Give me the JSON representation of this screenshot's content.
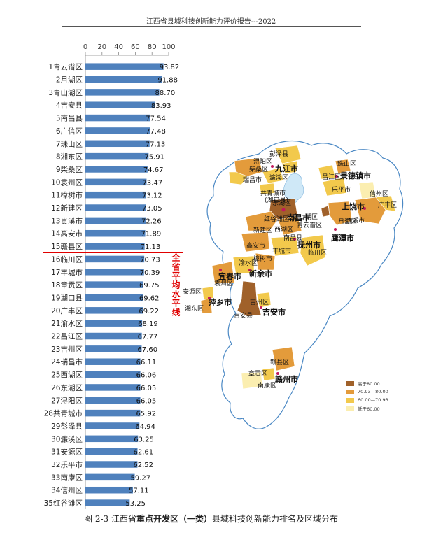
{
  "header": {
    "title": "江西省县域科技创新能力评价报告---2022"
  },
  "caption": {
    "prefix": "图 2-3 江西省",
    "bold": "重点开发区（一类）",
    "suffix": "县域科技创新能力排名及区域分布"
  },
  "average_label": "全省平均水平线",
  "colors": {
    "bar": "#4f81bd",
    "avg_line": "#e00000",
    "level1": "#a0612a",
    "level2": "#e39b3b",
    "level3": "#f2c94c",
    "level4": "#fbeeb0",
    "other": "#ffffff",
    "water": "#cfe8f7",
    "border": "#4a88c4"
  },
  "chart_data": {
    "type": "bar",
    "orientation": "horizontal",
    "xlim": [
      0,
      100
    ],
    "xticks": [
      0,
      20,
      40,
      60,
      80,
      100
    ],
    "average_after_rank": 15,
    "categories": [
      "1青云谱区",
      "2月湖区",
      "3青山湖区",
      "4吉安县",
      "5南昌县",
      "6广信区",
      "7珠山区",
      "8湘东区",
      "9柴桑区",
      "10袁州区",
      "11樟树市",
      "12新建区",
      "13贵溪市",
      "14高安市",
      "15赣县区",
      "16临川区",
      "17丰城市",
      "18章贡区",
      "19湖口县",
      "20广丰区",
      "21渝水区",
      "22昌江区",
      "23吉州区",
      "24瑞昌市",
      "25西湖区",
      "26东湖区",
      "27浔阳区",
      "28共青城市",
      "29彭泽县",
      "30濂溪区",
      "31安源区",
      "32乐平市",
      "33南康区",
      "34信州区",
      "35红谷滩区"
    ],
    "values": [
      93.82,
      91.88,
      88.7,
      83.93,
      77.54,
      77.48,
      77.13,
      75.91,
      74.67,
      73.47,
      73.12,
      73.05,
      72.26,
      71.89,
      71.13,
      70.73,
      70.39,
      69.75,
      69.62,
      69.22,
      68.19,
      67.77,
      67.6,
      66.11,
      66.06,
      66.05,
      66.05,
      65.92,
      64.94,
      63.25,
      62.61,
      62.52,
      59.27,
      57.11,
      53.25
    ],
    "value_labels": [
      "93.82",
      "91.88",
      "88.70",
      "83.93",
      "77.54",
      "77.48",
      "77.13",
      "75.91",
      "74.67",
      "73.47",
      "73.12",
      "73.05",
      "72.26",
      "71.89",
      "71.13",
      "70.73",
      "70.39",
      "69.75",
      "69.62",
      "69.22",
      "68.19",
      "67.77",
      "67.60",
      "66.11",
      "66.06",
      "66.05",
      "66.05",
      "65.92",
      "64.94",
      "63.25",
      "62.61",
      "62.52",
      "59.27",
      "57.11",
      "53.25"
    ]
  },
  "map": {
    "labels": [
      {
        "text": "彭泽县",
        "big": false
      },
      {
        "text": "浔阳区",
        "big": false
      },
      {
        "text": "柴桑区",
        "big": false
      },
      {
        "text": "九江市",
        "big": true
      },
      {
        "text": "濂溪区",
        "big": false
      },
      {
        "text": "瑞昌市",
        "big": false
      },
      {
        "text": "珠山区",
        "big": false
      },
      {
        "text": "昌江区",
        "big": false
      },
      {
        "text": "景德镇市",
        "big": true
      },
      {
        "text": "乐平市",
        "big": false
      },
      {
        "text": "共青城市",
        "big": false
      },
      {
        "text": "(湖口县)",
        "big": false
      },
      {
        "text": "信州区",
        "big": false
      },
      {
        "text": "上饶市",
        "big": true
      },
      {
        "text": "广丰区",
        "big": false
      },
      {
        "text": "东湖区",
        "big": false
      },
      {
        "text": "南昌市",
        "big": true
      },
      {
        "text": "红谷滩区",
        "big": false
      },
      {
        "text": "青山湖区",
        "big": false
      },
      {
        "text": "青云谱区",
        "big": false
      },
      {
        "text": "新建区",
        "big": false
      },
      {
        "text": "西湖区",
        "big": false
      },
      {
        "text": "南昌县",
        "big": false
      },
      {
        "text": "月湖区",
        "big": false
      },
      {
        "text": "贵溪市",
        "big": false
      },
      {
        "text": "鹰潭市",
        "big": true
      },
      {
        "text": "高安市",
        "big": false
      },
      {
        "text": "丰城市",
        "big": false
      },
      {
        "text": "抚州市",
        "big": true
      },
      {
        "text": "临川区",
        "big": false
      },
      {
        "text": "渝水区",
        "big": false
      },
      {
        "text": "樟树市",
        "big": false
      },
      {
        "text": "宜春市",
        "big": true
      },
      {
        "text": "新余市",
        "big": true
      },
      {
        "text": "袁州区",
        "big": false
      },
      {
        "text": "安源区",
        "big": false
      },
      {
        "text": "萍乡市",
        "big": true
      },
      {
        "text": "湘东区",
        "big": false
      },
      {
        "text": "吉州区",
        "big": false
      },
      {
        "text": "吉安市",
        "big": true
      },
      {
        "text": "吉安县",
        "big": false
      },
      {
        "text": "赣县区",
        "big": false
      },
      {
        "text": "章贡区",
        "big": false
      },
      {
        "text": "赣州市",
        "big": true
      },
      {
        "text": "南康区",
        "big": false
      }
    ],
    "legend": [
      {
        "text": "高于80.00",
        "color": "#a0612a"
      },
      {
        "text": "70.93—80.00",
        "color": "#e39b3b"
      },
      {
        "text": "60.00—70.93",
        "color": "#f2c94c"
      },
      {
        "text": "低于60.00",
        "color": "#fbeeb0"
      }
    ]
  }
}
